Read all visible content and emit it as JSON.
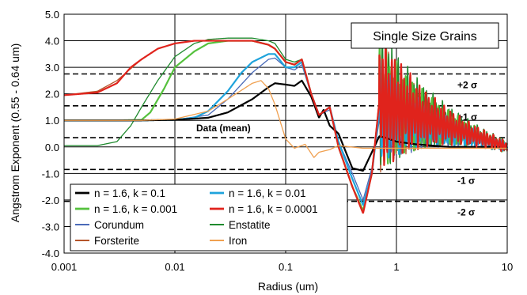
{
  "chart_data": {
    "type": "line",
    "title": "",
    "annotation_box": "Single  Size Grains",
    "xlabel": "Radius (um)",
    "ylabel": "Angstrom Exponent (0.55 - 0.64 um)",
    "x_scale": "log",
    "xlim": [
      0.001,
      10
    ],
    "ylim": [
      -4.0,
      5.0
    ],
    "x_ticks": [
      "0.001",
      "0.01",
      "0.1",
      "1",
      "10"
    ],
    "y_ticks": [
      "-4.0",
      "-3.0",
      "-2.0",
      "-1.0",
      "0.0",
      "1.0",
      "2.0",
      "3.0",
      "4.0",
      "5.0"
    ],
    "grid": true,
    "legend_position": "bottom-left",
    "reference_lines": [
      {
        "label": "+2 σ",
        "y": 2.75
      },
      {
        "label": "+1 σ",
        "y": 1.55
      },
      {
        "label": "Data (mean)",
        "y": 0.35
      },
      {
        "label": "-1 σ",
        "y": -0.85
      },
      {
        "label": "-2 σ",
        "y": -2.05
      }
    ],
    "series": [
      {
        "name": "n = 1.6, k = 0.1",
        "color": "#000000",
        "width": 2.2,
        "points": [
          [
            0.001,
            1.0
          ],
          [
            0.005,
            1.0
          ],
          [
            0.01,
            1.02
          ],
          [
            0.02,
            1.1
          ],
          [
            0.03,
            1.3
          ],
          [
            0.05,
            1.8
          ],
          [
            0.07,
            2.25
          ],
          [
            0.08,
            2.4
          ],
          [
            0.1,
            2.35
          ],
          [
            0.12,
            2.3
          ],
          [
            0.14,
            2.5
          ],
          [
            0.17,
            1.9
          ],
          [
            0.2,
            1.1
          ],
          [
            0.22,
            1.4
          ],
          [
            0.25,
            0.8
          ],
          [
            0.3,
            0.5
          ],
          [
            0.35,
            -0.2
          ],
          [
            0.4,
            -0.8
          ],
          [
            0.5,
            -0.9
          ],
          [
            0.6,
            -0.2
          ],
          [
            0.7,
            0.4
          ],
          [
            0.8,
            0.35
          ],
          [
            1.0,
            0.2
          ],
          [
            1.5,
            0.1
          ],
          [
            3.0,
            0.0
          ],
          [
            10.0,
            0.0
          ]
        ],
        "osc": null
      },
      {
        "name": "n = 1.6, k = 0.01",
        "color": "#1fa3dc",
        "width": 2.2,
        "points": [
          [
            0.001,
            1.0
          ],
          [
            0.005,
            1.0
          ],
          [
            0.01,
            1.02
          ],
          [
            0.015,
            1.1
          ],
          [
            0.02,
            1.35
          ],
          [
            0.03,
            2.1
          ],
          [
            0.04,
            2.8
          ],
          [
            0.05,
            3.2
          ],
          [
            0.07,
            3.5
          ],
          [
            0.08,
            3.5
          ],
          [
            0.1,
            3.0
          ],
          [
            0.12,
            3.0
          ],
          [
            0.14,
            3.2
          ],
          [
            0.17,
            2.0
          ],
          [
            0.2,
            1.2
          ],
          [
            0.25,
            1.5
          ],
          [
            0.3,
            0.2
          ],
          [
            0.4,
            -1.2
          ],
          [
            0.5,
            -2.2
          ],
          [
            0.6,
            -1.0
          ],
          [
            0.7,
            1.3
          ],
          [
            10.0,
            0.0
          ]
        ],
        "osc": {
          "start": 0.7,
          "end": 10.0,
          "amp_start": 2.0,
          "amp_end": 0.18,
          "cycles_per_decade": 32
        }
      },
      {
        "name": "n = 1.6, k = 0.001",
        "color": "#55c13d",
        "width": 2.2,
        "points": [
          [
            0.001,
            1.0
          ],
          [
            0.003,
            1.0
          ],
          [
            0.005,
            1.02
          ],
          [
            0.006,
            1.3
          ],
          [
            0.008,
            2.2
          ],
          [
            0.01,
            3.0
          ],
          [
            0.015,
            3.6
          ],
          [
            0.02,
            3.9
          ],
          [
            0.03,
            4.0
          ],
          [
            0.05,
            4.0
          ],
          [
            0.07,
            3.85
          ],
          [
            0.08,
            3.7
          ],
          [
            0.1,
            3.2
          ],
          [
            0.12,
            3.1
          ],
          [
            0.14,
            3.3
          ],
          [
            0.17,
            2.0
          ],
          [
            0.2,
            1.2
          ],
          [
            0.25,
            1.5
          ],
          [
            0.3,
            0.0
          ],
          [
            0.4,
            -1.5
          ],
          [
            0.5,
            -2.4
          ],
          [
            0.6,
            -1.0
          ],
          [
            0.7,
            1.6
          ],
          [
            10.0,
            0.0
          ]
        ],
        "osc": {
          "start": 0.7,
          "end": 10.0,
          "amp_start": 2.6,
          "amp_end": 0.22,
          "cycles_per_decade": 34
        }
      },
      {
        "name": "n = 1.6, k = 0.0001",
        "color": "#e0231c",
        "width": 2.2,
        "points": [
          [
            0.001,
            1.95
          ],
          [
            0.002,
            2.05
          ],
          [
            0.003,
            2.4
          ],
          [
            0.004,
            3.0
          ],
          [
            0.005,
            3.3
          ],
          [
            0.007,
            3.7
          ],
          [
            0.01,
            3.9
          ],
          [
            0.015,
            4.0
          ],
          [
            0.03,
            4.0
          ],
          [
            0.05,
            4.0
          ],
          [
            0.07,
            3.85
          ],
          [
            0.08,
            3.7
          ],
          [
            0.1,
            3.2
          ],
          [
            0.12,
            3.1
          ],
          [
            0.14,
            3.3
          ],
          [
            0.17,
            2.0
          ],
          [
            0.2,
            1.2
          ],
          [
            0.25,
            1.5
          ],
          [
            0.3,
            0.0
          ],
          [
            0.4,
            -1.5
          ],
          [
            0.5,
            -2.5
          ],
          [
            0.6,
            -1.0
          ],
          [
            0.7,
            1.7
          ],
          [
            10.0,
            0.0
          ]
        ],
        "osc": {
          "start": 0.7,
          "end": 10.0,
          "amp_start": 2.8,
          "amp_end": 0.22,
          "cycles_per_decade": 36
        }
      },
      {
        "name": "Corundum",
        "color": "#4a6ab8",
        "width": 1.3,
        "points": [
          [
            0.001,
            1.0
          ],
          [
            0.005,
            1.0
          ],
          [
            0.01,
            1.02
          ],
          [
            0.02,
            1.2
          ],
          [
            0.03,
            1.8
          ],
          [
            0.05,
            2.8
          ],
          [
            0.07,
            3.3
          ],
          [
            0.08,
            3.35
          ],
          [
            0.1,
            3.0
          ],
          [
            0.12,
            2.9
          ],
          [
            0.14,
            3.1
          ],
          [
            0.17,
            2.0
          ],
          [
            0.2,
            1.2
          ],
          [
            0.25,
            1.4
          ],
          [
            0.3,
            0.2
          ],
          [
            0.4,
            -1.0
          ],
          [
            0.5,
            -2.0
          ],
          [
            0.6,
            -0.8
          ],
          [
            0.7,
            1.0
          ],
          [
            10.0,
            0.0
          ]
        ],
        "osc": {
          "start": 0.7,
          "end": 10.0,
          "amp_start": 1.8,
          "amp_end": 0.15,
          "cycles_per_decade": 33
        }
      },
      {
        "name": "Enstatite",
        "color": "#1f8a2e",
        "width": 1.3,
        "points": [
          [
            0.001,
            0.05
          ],
          [
            0.002,
            0.05
          ],
          [
            0.003,
            0.2
          ],
          [
            0.004,
            0.8
          ],
          [
            0.005,
            1.5
          ],
          [
            0.007,
            2.5
          ],
          [
            0.01,
            3.4
          ],
          [
            0.015,
            3.9
          ],
          [
            0.02,
            4.05
          ],
          [
            0.03,
            4.1
          ],
          [
            0.05,
            4.1
          ],
          [
            0.07,
            4.0
          ],
          [
            0.08,
            3.9
          ],
          [
            0.1,
            3.3
          ],
          [
            0.12,
            3.2
          ],
          [
            0.14,
            3.3
          ],
          [
            0.17,
            2.0
          ],
          [
            0.2,
            1.2
          ],
          [
            0.25,
            1.5
          ],
          [
            0.3,
            0.0
          ],
          [
            0.4,
            -1.5
          ],
          [
            0.5,
            -2.5
          ],
          [
            0.6,
            -1.0
          ],
          [
            0.7,
            1.8
          ],
          [
            10.0,
            0.0
          ]
        ],
        "osc": {
          "start": 0.7,
          "end": 10.0,
          "amp_start": 3.0,
          "amp_end": 0.25,
          "cycles_per_decade": 35
        }
      },
      {
        "name": "Forsterite",
        "color": "#b5552a",
        "width": 1.3,
        "points": [
          [
            0.001,
            1.95
          ],
          [
            0.002,
            2.1
          ],
          [
            0.003,
            2.5
          ],
          [
            0.005,
            3.3
          ],
          [
            0.007,
            3.7
          ],
          [
            0.01,
            3.9
          ],
          [
            0.015,
            4.0
          ],
          [
            0.03,
            4.0
          ],
          [
            0.05,
            4.0
          ],
          [
            0.07,
            3.85
          ],
          [
            0.08,
            3.7
          ],
          [
            0.1,
            3.2
          ],
          [
            0.12,
            3.1
          ],
          [
            0.14,
            3.3
          ],
          [
            0.17,
            2.0
          ],
          [
            0.2,
            1.2
          ],
          [
            0.25,
            1.5
          ],
          [
            0.3,
            0.0
          ],
          [
            0.4,
            -1.5
          ],
          [
            0.5,
            -2.4
          ],
          [
            0.6,
            -1.0
          ],
          [
            0.7,
            1.6
          ],
          [
            10.0,
            0.0
          ]
        ],
        "osc": {
          "start": 0.7,
          "end": 10.0,
          "amp_start": 2.6,
          "amp_end": 0.22,
          "cycles_per_decade": 35
        }
      },
      {
        "name": "Iron",
        "color": "#f0a050",
        "width": 1.3,
        "points": [
          [
            0.001,
            1.0
          ],
          [
            0.005,
            1.0
          ],
          [
            0.01,
            1.05
          ],
          [
            0.02,
            1.35
          ],
          [
            0.03,
            1.8
          ],
          [
            0.05,
            2.4
          ],
          [
            0.06,
            2.5
          ],
          [
            0.07,
            2.2
          ],
          [
            0.08,
            1.6
          ],
          [
            0.1,
            0.3
          ],
          [
            0.12,
            -0.05
          ],
          [
            0.15,
            0.1
          ],
          [
            0.18,
            -0.4
          ],
          [
            0.2,
            -0.2
          ],
          [
            0.25,
            -0.1
          ],
          [
            0.3,
            0.05
          ],
          [
            0.5,
            -0.05
          ],
          [
            1.0,
            -0.05
          ],
          [
            10.0,
            -0.05
          ]
        ],
        "osc": null
      }
    ]
  }
}
